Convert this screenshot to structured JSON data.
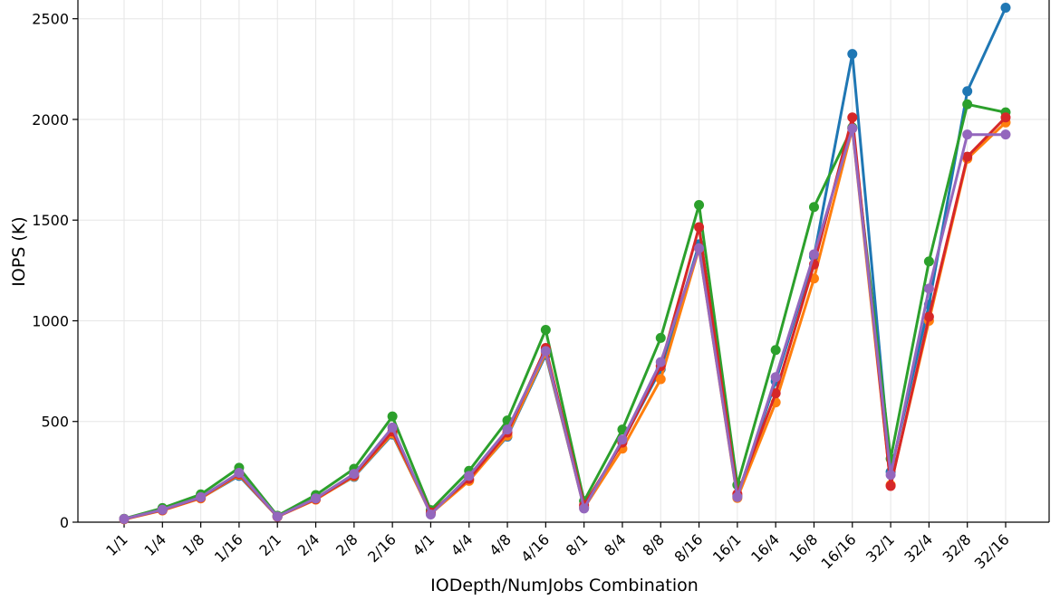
{
  "chart_data": {
    "type": "line",
    "xlabel": "IODepth/NumJobs Combination",
    "ylabel": "IOPS (K)",
    "ylim": [
      0,
      2620
    ],
    "yticks": [
      0,
      500,
      1000,
      1500,
      2000,
      2500
    ],
    "grid": true,
    "categories": [
      "1/1",
      "1/4",
      "1/8",
      "1/16",
      "2/1",
      "2/4",
      "2/8",
      "2/16",
      "4/1",
      "4/4",
      "4/8",
      "4/16",
      "8/1",
      "8/4",
      "8/8",
      "8/16",
      "16/1",
      "16/4",
      "16/8",
      "16/16",
      "32/1",
      "32/4",
      "32/8",
      "32/16"
    ],
    "series": [
      {
        "color": "#1f77b4",
        "values": [
          15,
          60,
          120,
          230,
          28,
          115,
          225,
          435,
          45,
          210,
          425,
          830,
          75,
          400,
          760,
          1380,
          130,
          700,
          1320,
          2325,
          250,
          1080,
          2140,
          2555
        ]
      },
      {
        "color": "#ff7f0e",
        "values": [
          14,
          58,
          118,
          235,
          27,
          112,
          228,
          440,
          42,
          205,
          430,
          840,
          70,
          365,
          710,
          1360,
          120,
          595,
          1210,
          1955,
          185,
          1000,
          1805,
          1985
        ]
      },
      {
        "color": "#2ca02c",
        "values": [
          17,
          70,
          138,
          270,
          32,
          135,
          265,
          525,
          60,
          255,
          505,
          955,
          105,
          460,
          915,
          1575,
          185,
          855,
          1565,
          1960,
          315,
          1295,
          2075,
          2035
        ]
      },
      {
        "color": "#d62728",
        "values": [
          15,
          60,
          122,
          240,
          27,
          115,
          232,
          450,
          48,
          215,
          445,
          865,
          85,
          395,
          775,
          1465,
          140,
          640,
          1280,
          2010,
          180,
          1020,
          1815,
          2010
        ]
      },
      {
        "color": "#9467bd",
        "values": [
          16,
          62,
          124,
          245,
          28,
          118,
          240,
          470,
          38,
          230,
          460,
          850,
          68,
          410,
          795,
          1360,
          125,
          720,
          1330,
          1955,
          235,
          1160,
          1925,
          1925
        ]
      }
    ]
  }
}
